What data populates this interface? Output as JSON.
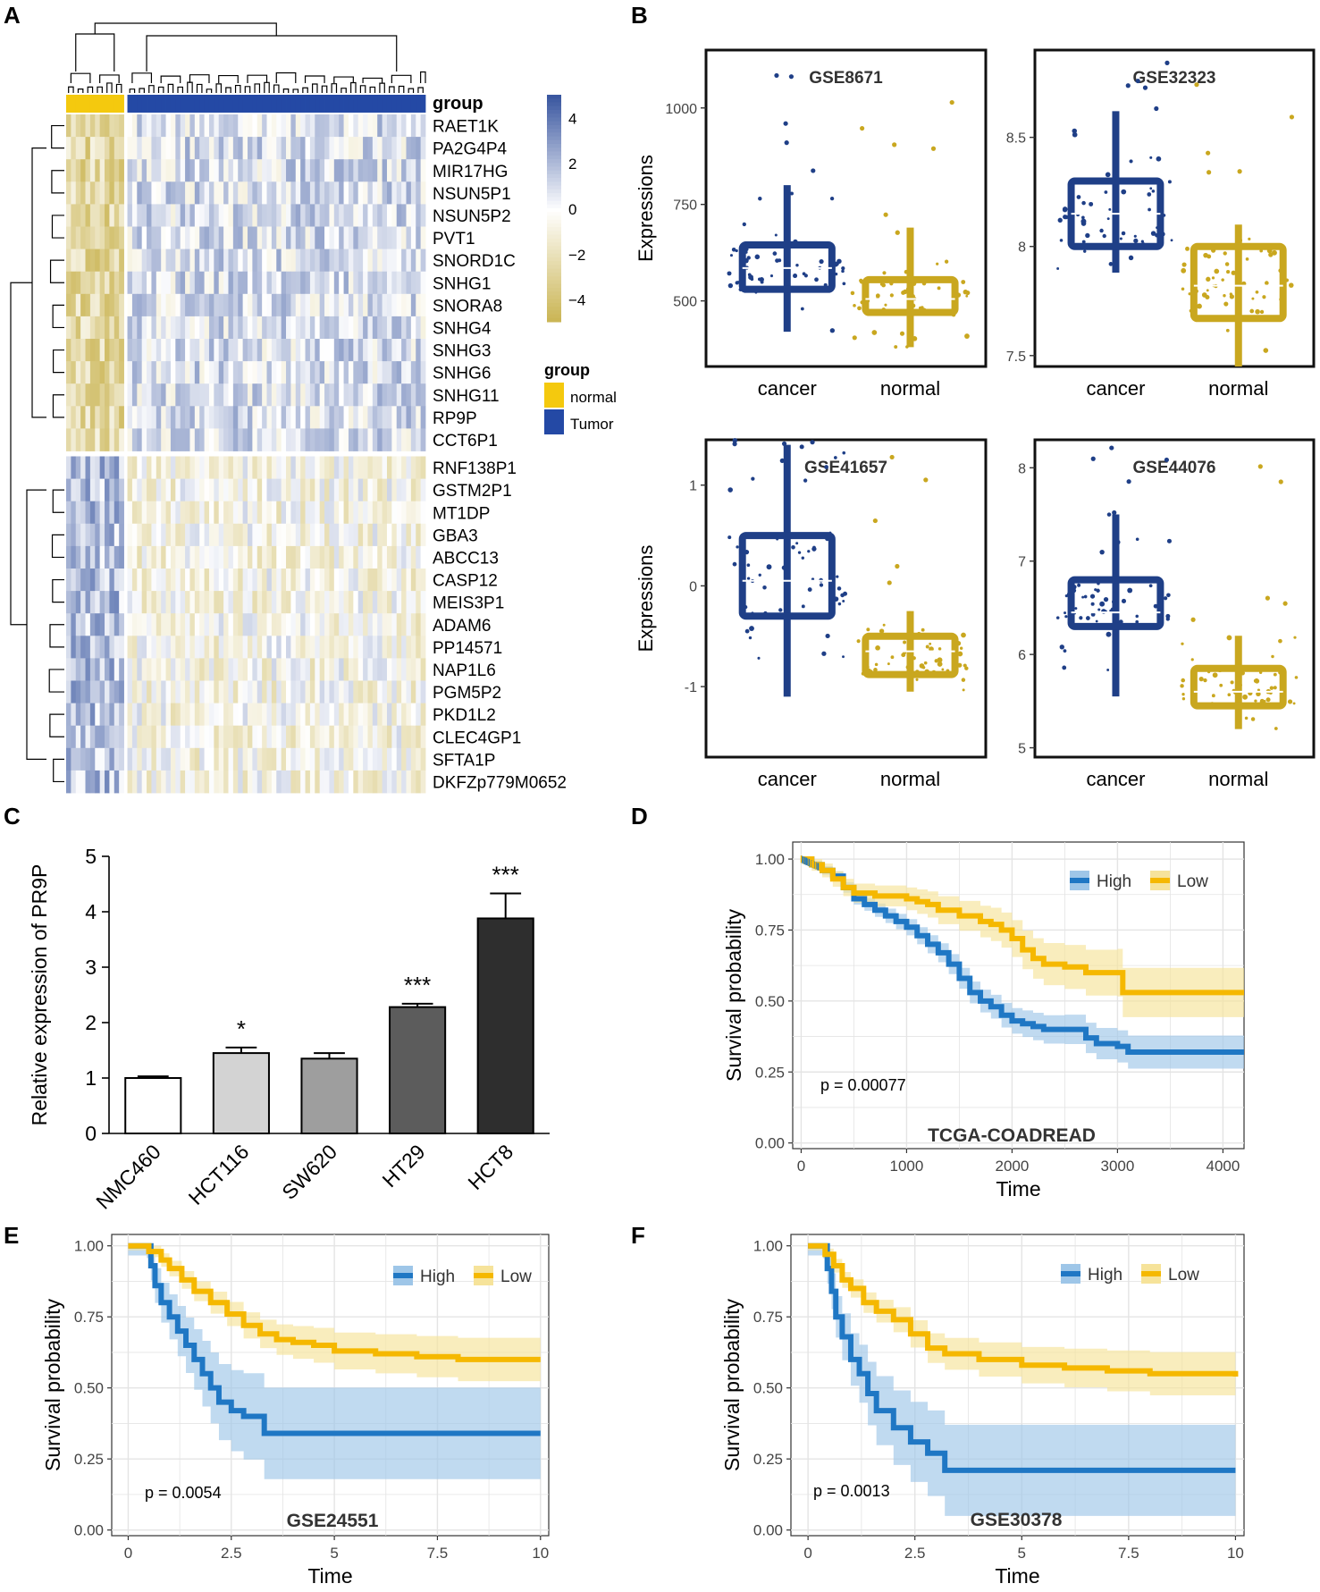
{
  "panel_labels": {
    "A": "A",
    "B": "B",
    "C": "C",
    "D": "D",
    "E": "E",
    "F": "F"
  },
  "colors": {
    "tumor": "#1f3f87",
    "normal": "#c9a71f",
    "heat_high": "#3a57a0",
    "heat_mid": "#ffffff",
    "heat_low": "#c9b350",
    "km_high": "#1f77c4",
    "km_low": "#f5b800",
    "km_high_band": "#9ec6e8",
    "km_low_band": "#f6e39a",
    "bar_fills": [
      "#ffffff",
      "#d3d3d3",
      "#9e9e9e",
      "#5c5c5c",
      "#2e2e2e"
    ]
  },
  "chart_data": [
    {
      "id": "A",
      "type": "heatmap",
      "group_label": "group",
      "rows": [
        "RAET1K",
        "PA2G4P4",
        "MIR17HG",
        "NSUN5P1",
        "NSUN5P2",
        "PVT1",
        "SNORD1C",
        "SNHG1",
        "SNORA8",
        "SNHG4",
        "SNHG3",
        "SNHG6",
        "SNHG11",
        "RP9P",
        "CCT6P1",
        "RNF138P1",
        "GSTM2P1",
        "MT1DP",
        "GBA3",
        "ABCC13",
        "CASP12",
        "MEIS3P1",
        "ADAM6",
        "PP14571",
        "NAP1L6",
        "PGM5P2",
        "PKD1L2",
        "CLEC4GP1",
        "SFTA1P",
        "DKFZp779M0652"
      ],
      "cluster_split_after": 15,
      "n_normal": 12,
      "n_tumor": 62,
      "colorbar": {
        "ticks": [
          4,
          2,
          0,
          -2,
          -4
        ],
        "labels": [
          "4",
          "2",
          "0",
          "−2",
          "−4"
        ],
        "range": [
          -5,
          5
        ]
      },
      "legend": {
        "title": "group",
        "entries": [
          "normal",
          "Tumor"
        ]
      }
    },
    {
      "id": "B1",
      "type": "box",
      "title": "GSE8671",
      "ylabel": "Expressions",
      "ylim": [
        330,
        1150
      ],
      "yticks": [
        500,
        750,
        1000
      ],
      "categories": [
        "cancer",
        "normal"
      ],
      "boxes": [
        {
          "min": 420,
          "q1": 530,
          "median": 585,
          "q3": 645,
          "max": 800
        },
        {
          "min": 380,
          "q1": 470,
          "median": 505,
          "q3": 555,
          "max": 690
        }
      ]
    },
    {
      "id": "B2",
      "type": "box",
      "title": "GSE32323",
      "ylabel": "",
      "ylim": [
        7.45,
        8.9
      ],
      "yticks": [
        7.5,
        8.0,
        8.5
      ],
      "categories": [
        "cancer",
        "normal"
      ],
      "boxes": [
        {
          "min": 7.88,
          "q1": 8.0,
          "median": 8.15,
          "q3": 8.3,
          "max": 8.62
        },
        {
          "min": 7.45,
          "q1": 7.67,
          "median": 7.82,
          "q3": 8.0,
          "max": 8.1
        }
      ]
    },
    {
      "id": "B3",
      "type": "box",
      "title": "GSE41657",
      "ylabel": "Expressions",
      "ylim": [
        -1.7,
        1.45
      ],
      "yticks": [
        -1,
        0,
        1
      ],
      "categories": [
        "cancer",
        "normal"
      ],
      "boxes": [
        {
          "min": -1.1,
          "q1": -0.3,
          "median": 0.05,
          "q3": 0.5,
          "max": 1.4
        },
        {
          "min": -1.05,
          "q1": -0.88,
          "median": -0.65,
          "q3": -0.5,
          "max": -0.25
        }
      ]
    },
    {
      "id": "B4",
      "type": "box",
      "title": "GSE44076",
      "ylabel": "",
      "ylim": [
        4.9,
        8.3
      ],
      "yticks": [
        5,
        6,
        7,
        8
      ],
      "categories": [
        "cancer",
        "normal"
      ],
      "boxes": [
        {
          "min": 5.55,
          "q1": 6.3,
          "median": 6.45,
          "q3": 6.8,
          "max": 7.5
        },
        {
          "min": 5.2,
          "q1": 5.45,
          "median": 5.6,
          "q3": 5.85,
          "max": 6.2
        }
      ]
    },
    {
      "id": "C",
      "type": "bar",
      "ylabel": "Relative expression of PR9P",
      "categories": [
        "NMC460",
        "HCT116",
        "SW620",
        "HT29",
        "HCT8"
      ],
      "values": [
        1.0,
        1.45,
        1.35,
        2.28,
        3.88
      ],
      "errors": [
        0.03,
        0.1,
        0.1,
        0.06,
        0.45
      ],
      "significance": [
        "",
        "*",
        "",
        "***",
        "***"
      ],
      "ylim": [
        0,
        5
      ],
      "yticks": [
        0,
        1,
        2,
        3,
        4,
        5
      ]
    },
    {
      "id": "D",
      "type": "line",
      "title": "TCGA-COADREAD",
      "xlabel": "Time",
      "ylabel": "Survival probability",
      "xlim": [
        -80,
        4200
      ],
      "ylim": [
        -0.02,
        1.06
      ],
      "xticks": [
        0,
        1000,
        2000,
        3000,
        4000
      ],
      "yticks": [
        0,
        0.25,
        0.5,
        0.75,
        1.0
      ],
      "ytick_labels": [
        "0.00",
        "0.25",
        "0.50",
        "0.75",
        "1.00"
      ],
      "pvalue": "p = 0.00077",
      "legend_entries": [
        "High",
        "Low"
      ],
      "series": [
        {
          "name": "High",
          "band": 0.06,
          "x": [
            0,
            100,
            200,
            300,
            400,
            500,
            600,
            700,
            800,
            900,
            1000,
            1100,
            1200,
            1300,
            1400,
            1500,
            1600,
            1700,
            1800,
            1900,
            2000,
            2100,
            2200,
            2300,
            2500,
            2700,
            2800,
            3000,
            3100,
            4200
          ],
          "y": [
            1.0,
            0.98,
            0.96,
            0.94,
            0.9,
            0.86,
            0.84,
            0.82,
            0.8,
            0.78,
            0.76,
            0.73,
            0.7,
            0.67,
            0.63,
            0.58,
            0.53,
            0.5,
            0.48,
            0.45,
            0.43,
            0.42,
            0.41,
            0.4,
            0.4,
            0.37,
            0.35,
            0.34,
            0.32,
            0.32
          ]
        },
        {
          "name": "Low",
          "band": 0.09,
          "x": [
            0,
            100,
            200,
            300,
            400,
            500,
            700,
            1000,
            1100,
            1200,
            1300,
            1500,
            1700,
            1800,
            1900,
            2000,
            2100,
            2200,
            2300,
            2500,
            2700,
            3000,
            3050,
            4200
          ],
          "y": [
            1.0,
            0.98,
            0.96,
            0.93,
            0.9,
            0.88,
            0.87,
            0.86,
            0.85,
            0.84,
            0.82,
            0.8,
            0.78,
            0.77,
            0.75,
            0.72,
            0.68,
            0.65,
            0.63,
            0.62,
            0.6,
            0.6,
            0.53,
            0.53
          ]
        }
      ]
    },
    {
      "id": "E",
      "type": "line",
      "title": "GSE24551",
      "xlabel": "Time",
      "ylabel": "Survival probability",
      "xlim": [
        -0.4,
        10.2
      ],
      "ylim": [
        -0.02,
        1.04
      ],
      "xticks": [
        0,
        2.5,
        5,
        7.5,
        10
      ],
      "xtick_labels": [
        "0",
        "2.5",
        "5",
        "7.5",
        "10"
      ],
      "yticks": [
        0,
        0.25,
        0.5,
        0.75,
        1.0
      ],
      "ytick_labels": [
        "0.00",
        "0.25",
        "0.50",
        "0.75",
        "1.00"
      ],
      "pvalue": "p = 0.0054",
      "legend_entries": [
        "High",
        "Low"
      ],
      "series": [
        {
          "name": "High",
          "band": 0.17,
          "x": [
            0,
            0.45,
            0.55,
            0.65,
            0.8,
            1.0,
            1.2,
            1.4,
            1.6,
            1.8,
            2.0,
            2.2,
            2.5,
            2.8,
            3.3,
            10
          ],
          "y": [
            1.0,
            1.0,
            0.93,
            0.86,
            0.8,
            0.75,
            0.7,
            0.65,
            0.6,
            0.55,
            0.5,
            0.45,
            0.42,
            0.4,
            0.34,
            0.34
          ]
        },
        {
          "name": "Low",
          "band": 0.08,
          "x": [
            0,
            0.5,
            0.8,
            1.0,
            1.3,
            1.6,
            2.0,
            2.4,
            2.8,
            3.2,
            3.6,
            4.0,
            4.5,
            5.0,
            6.0,
            7.0,
            8.0,
            10
          ],
          "y": [
            1.0,
            0.98,
            0.95,
            0.92,
            0.88,
            0.84,
            0.8,
            0.76,
            0.72,
            0.69,
            0.67,
            0.66,
            0.65,
            0.63,
            0.62,
            0.61,
            0.6,
            0.6
          ]
        }
      ]
    },
    {
      "id": "F",
      "type": "line",
      "title": "GSE30378",
      "xlabel": "Time",
      "ylabel": "Survival probability",
      "xlim": [
        -0.4,
        10.2
      ],
      "ylim": [
        -0.02,
        1.04
      ],
      "xticks": [
        0,
        2.5,
        5,
        7.5,
        10
      ],
      "xtick_labels": [
        "0",
        "2.5",
        "5",
        "7.5",
        "10"
      ],
      "yticks": [
        0,
        0.25,
        0.5,
        0.75,
        1.0
      ],
      "ytick_labels": [
        "0.00",
        "0.25",
        "0.50",
        "0.75",
        "1.00"
      ],
      "pvalue": "p = 0.0013",
      "legend_entries": [
        "High",
        "Low"
      ],
      "series": [
        {
          "name": "High",
          "band": 0.17,
          "x": [
            0,
            0.35,
            0.45,
            0.55,
            0.65,
            0.8,
            1.0,
            1.2,
            1.4,
            1.6,
            2.0,
            2.4,
            2.8,
            3.2,
            10
          ],
          "y": [
            1.0,
            1.0,
            0.92,
            0.84,
            0.75,
            0.68,
            0.6,
            0.55,
            0.48,
            0.42,
            0.36,
            0.31,
            0.27,
            0.21,
            0.21
          ]
        },
        {
          "name": "Low",
          "band": 0.08,
          "x": [
            0,
            0.4,
            0.6,
            0.8,
            1.0,
            1.3,
            1.6,
            2.0,
            2.4,
            2.8,
            3.2,
            4.0,
            5.0,
            6.0,
            7.0,
            8.0,
            10
          ],
          "y": [
            1.0,
            0.97,
            0.93,
            0.88,
            0.85,
            0.8,
            0.77,
            0.74,
            0.69,
            0.64,
            0.62,
            0.6,
            0.58,
            0.57,
            0.56,
            0.55,
            0.54
          ]
        }
      ]
    }
  ]
}
